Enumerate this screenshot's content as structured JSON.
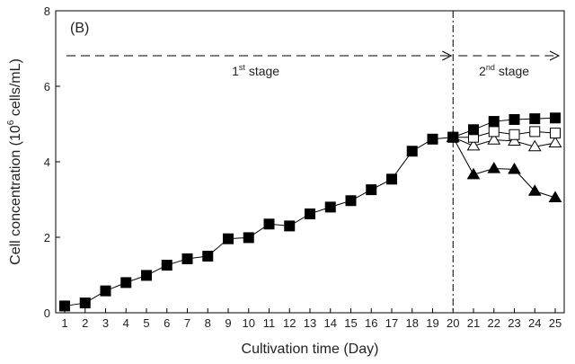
{
  "chart_data": {
    "type": "line",
    "panel_label": "(B)",
    "xlabel": "Cultivation time (Day)",
    "ylabel": {
      "prefix": "Cell concentration (10",
      "exponent": "6",
      "suffix": " cells/mL)"
    },
    "xlim": [
      1,
      25
    ],
    "ylim": [
      0,
      8
    ],
    "x_ticks": [
      1,
      2,
      3,
      4,
      5,
      6,
      7,
      8,
      9,
      10,
      11,
      12,
      13,
      14,
      15,
      16,
      17,
      18,
      19,
      20,
      21,
      22,
      23,
      24,
      25
    ],
    "y_ticks": [
      0,
      2,
      4,
      6,
      8
    ],
    "grid": false,
    "legend": "none",
    "stage_divider_x": 20,
    "stages": [
      {
        "number": "1",
        "superscript": "st",
        "text": " stage",
        "x_from": 1,
        "x_to": 20
      },
      {
        "number": "2",
        "superscript": "nd",
        "text": " stage",
        "x_from": 20,
        "x_to": 25
      }
    ],
    "series": [
      {
        "marker": "filled-square",
        "x": [
          1,
          2,
          3,
          4,
          5,
          6,
          7,
          8,
          9,
          10,
          11,
          12,
          13,
          14,
          15,
          16,
          17,
          18,
          19,
          20,
          21,
          22,
          23,
          24,
          25
        ],
        "y": [
          0.18,
          0.26,
          0.58,
          0.8,
          0.99,
          1.26,
          1.43,
          1.5,
          1.96,
          1.99,
          2.35,
          2.3,
          2.62,
          2.8,
          2.97,
          3.26,
          3.54,
          4.28,
          4.6,
          4.65,
          4.85,
          5.07,
          5.12,
          5.14,
          5.16
        ]
      },
      {
        "marker": "open-square",
        "x": [
          20,
          21,
          22,
          23,
          24,
          25
        ],
        "y": [
          4.65,
          4.65,
          4.8,
          4.72,
          4.8,
          4.76
        ]
      },
      {
        "marker": "open-triangle",
        "x": [
          20,
          21,
          22,
          23,
          24,
          25
        ],
        "y": [
          4.65,
          4.42,
          4.58,
          4.55,
          4.4,
          4.5
        ]
      },
      {
        "marker": "filled-triangle",
        "x": [
          20,
          21,
          22,
          23,
          24,
          25
        ],
        "y": [
          4.65,
          3.66,
          3.82,
          3.8,
          3.22,
          3.05
        ]
      }
    ]
  }
}
